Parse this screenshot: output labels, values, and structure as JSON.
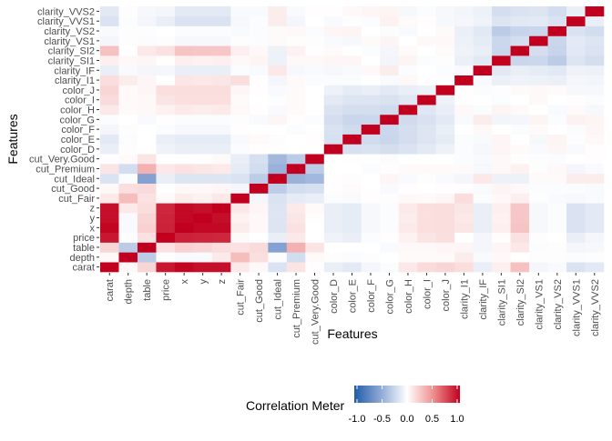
{
  "chart_data": {
    "type": "heatmap",
    "xlabel": "Features",
    "ylabel": "Features",
    "features": [
      "carat",
      "depth",
      "table",
      "price",
      "x",
      "y",
      "z",
      "cut_Fair",
      "cut_Good",
      "cut_Ideal",
      "cut_Premium",
      "cut_Very.Good",
      "color_D",
      "color_E",
      "color_F",
      "color_G",
      "color_H",
      "color_I",
      "color_J",
      "clarity_I1",
      "clarity_IF",
      "clarity_SI1",
      "clarity_SI2",
      "clarity_VS1",
      "clarity_VS2",
      "clarity_VVS1",
      "clarity_VVS2"
    ],
    "legend": {
      "title": "Correlation Meter",
      "placement": "bottom",
      "range": [
        -1,
        1
      ],
      "ticks": [
        "-1.0",
        "-0.5",
        "0.0",
        "0.5",
        "1.0"
      ]
    },
    "colors": {
      "low": "#2166ac",
      "mid": "#ffffff",
      "high": "#c0001e"
    },
    "matrix": [
      [
        1,
        0.03,
        0.18,
        0.92,
        0.98,
        0.95,
        0.95,
        0.09,
        0.03,
        -0.16,
        0.12,
        0.01,
        -0.1,
        -0.12,
        -0.05,
        -0.02,
        0.1,
        0.16,
        0.18,
        0.15,
        -0.1,
        0.07,
        0.27,
        -0.05,
        -0.03,
        -0.16,
        -0.13
      ],
      [
        0.03,
        1,
        -0.3,
        -0.01,
        -0.03,
        -0.03,
        0.09,
        0.29,
        0.14,
        -0.02,
        -0.2,
        0.02,
        -0.01,
        -0.02,
        -0.01,
        0,
        0.02,
        0.02,
        0.02,
        0.08,
        -0.03,
        0.03,
        0,
        -0.01,
        -0.01,
        -0.02,
        -0.01
      ],
      [
        0.18,
        -0.3,
        1,
        0.13,
        0.2,
        0.18,
        0.15,
        0.13,
        0.16,
        -0.55,
        0.34,
        0.12,
        0,
        0,
        0,
        -0.03,
        0.03,
        0.03,
        0.04,
        0.04,
        -0.05,
        0.04,
        0.1,
        -0.02,
        -0.01,
        -0.05,
        -0.04
      ],
      [
        0.92,
        -0.01,
        0.13,
        1,
        0.88,
        0.87,
        0.86,
        0.02,
        0,
        -0.1,
        0.1,
        0,
        -0.07,
        -0.1,
        -0.02,
        0.01,
        0.06,
        0.12,
        0.14,
        0,
        -0.05,
        0.01,
        0.13,
        -0.01,
        0,
        -0.1,
        -0.05
      ],
      [
        0.98,
        -0.03,
        0.2,
        0.88,
        1,
        0.97,
        0.97,
        0.08,
        0.03,
        -0.15,
        0.13,
        0,
        -0.1,
        -0.11,
        -0.04,
        -0.02,
        0.09,
        0.14,
        0.15,
        0.11,
        -0.1,
        0.07,
        0.26,
        -0.04,
        -0.02,
        -0.16,
        -0.12
      ],
      [
        0.95,
        -0.03,
        0.18,
        0.87,
        0.97,
        1,
        0.95,
        0.06,
        0.03,
        -0.15,
        0.11,
        0.01,
        -0.1,
        -0.11,
        -0.04,
        -0.02,
        0.08,
        0.14,
        0.15,
        0.1,
        -0.1,
        0.06,
        0.25,
        -0.04,
        -0.02,
        -0.16,
        -0.12
      ],
      [
        0.95,
        0.09,
        0.15,
        0.86,
        0.97,
        0.95,
        1,
        0.1,
        0.04,
        -0.15,
        0.09,
        0.02,
        -0.1,
        -0.11,
        -0.04,
        -0.02,
        0.09,
        0.14,
        0.15,
        0.11,
        -0.1,
        0.07,
        0.25,
        -0.04,
        -0.02,
        -0.16,
        -0.12
      ],
      [
        0.09,
        0.29,
        0.13,
        0.02,
        0.08,
        0.06,
        0.1,
        1,
        -0.05,
        -0.16,
        -0.11,
        -0.1,
        -0.02,
        -0.03,
        0.01,
        -0.01,
        0.03,
        0.02,
        0.04,
        0.15,
        -0.02,
        0.03,
        0.07,
        -0.01,
        -0.03,
        -0.04,
        -0.03
      ],
      [
        0.03,
        0.14,
        0.16,
        0,
        0.03,
        0.03,
        0.04,
        -0.05,
        1,
        -0.29,
        -0.2,
        -0.18,
        0.01,
        0.02,
        0,
        -0.03,
        0.01,
        0,
        0.01,
        0.01,
        -0.03,
        0.05,
        0.03,
        -0.02,
        -0.02,
        -0.02,
        -0.03
      ],
      [
        -0.16,
        -0.02,
        -0.55,
        -0.1,
        -0.15,
        -0.15,
        -0.15,
        -0.16,
        -0.29,
        1,
        -0.45,
        -0.41,
        0.01,
        -0.01,
        0,
        0.04,
        -0.03,
        -0.01,
        -0.03,
        -0.05,
        0.1,
        -0.08,
        -0.08,
        0.02,
        0.02,
        0.08,
        0.08
      ],
      [
        0.12,
        -0.2,
        0.34,
        0.1,
        0.13,
        0.11,
        0.09,
        -0.11,
        -0.2,
        -0.45,
        1,
        -0.3,
        0,
        0,
        -0.02,
        0.01,
        0.02,
        0.02,
        0.02,
        0.02,
        -0.04,
        0.03,
        0.06,
        -0.01,
        0.03,
        -0.05,
        -0.03
      ],
      [
        0.01,
        0.02,
        0.12,
        0,
        0,
        0.01,
        0.02,
        -0.1,
        -0.18,
        -0.41,
        -0.3,
        1,
        0,
        0.01,
        0,
        -0.02,
        0,
        0,
        0,
        -0.02,
        -0.03,
        0.03,
        0.01,
        -0.01,
        -0.02,
        0,
        0.01
      ],
      [
        -0.1,
        -0.01,
        0,
        -0.07,
        -0.1,
        -0.1,
        -0.1,
        -0.02,
        0.01,
        0.01,
        0,
        0,
        1,
        -0.18,
        -0.17,
        -0.19,
        -0.16,
        -0.12,
        -0.08,
        -0.02,
        -0.04,
        0.04,
        0.02,
        -0.03,
        0.04,
        -0.03,
        0.01
      ],
      [
        -0.12,
        -0.02,
        0,
        -0.1,
        -0.11,
        -0.11,
        -0.11,
        -0.03,
        0.02,
        -0.01,
        0,
        0.01,
        -0.18,
        1,
        -0.21,
        -0.24,
        -0.19,
        -0.15,
        -0.11,
        -0.02,
        -0.03,
        0.04,
        0,
        -0.04,
        0.05,
        -0.01,
        0.03
      ],
      [
        -0.05,
        -0.01,
        0,
        -0.02,
        -0.04,
        -0.04,
        -0.04,
        0.01,
        0,
        0,
        -0.02,
        0,
        -0.17,
        -0.21,
        1,
        -0.23,
        -0.19,
        -0.15,
        -0.1,
        0,
        0.03,
        0,
        -0.02,
        0.02,
        0,
        -0.02,
        0.04
      ],
      [
        -0.02,
        0,
        -0.03,
        0.01,
        -0.02,
        -0.02,
        -0.02,
        -0.01,
        -0.03,
        0.04,
        0.01,
        -0.02,
        -0.19,
        -0.24,
        -0.23,
        1,
        -0.21,
        -0.17,
        -0.12,
        -0.03,
        0.08,
        -0.06,
        -0.05,
        0.05,
        -0.02,
        0.06,
        0.05
      ],
      [
        0.1,
        0.02,
        0.03,
        0.06,
        0.09,
        0.08,
        0.09,
        0.03,
        0.01,
        -0.03,
        0.02,
        0,
        -0.16,
        -0.19,
        -0.19,
        -0.21,
        1,
        -0.14,
        -0.1,
        0.03,
        -0.02,
        0.05,
        0.02,
        0,
        -0.03,
        0.02,
        -0.04
      ],
      [
        0.16,
        0.02,
        0.03,
        0.12,
        0.14,
        0.14,
        0.14,
        0.02,
        0,
        -0.01,
        0.02,
        0,
        -0.12,
        -0.15,
        -0.15,
        -0.17,
        -0.14,
        1,
        -0.08,
        0.01,
        0,
        -0.02,
        0,
        0.03,
        0,
        0.01,
        -0.02
      ],
      [
        0.18,
        0.02,
        0.04,
        0.14,
        0.15,
        0.15,
        0.15,
        0.04,
        0.01,
        -0.03,
        0.02,
        0,
        -0.08,
        -0.11,
        -0.1,
        -0.12,
        -0.1,
        -0.08,
        1,
        0.01,
        -0.02,
        -0.01,
        0.02,
        0.03,
        0.02,
        -0.04,
        -0.04
      ],
      [
        0.15,
        0.08,
        0.04,
        0,
        0.11,
        0.1,
        0.11,
        0.15,
        0.01,
        -0.05,
        0.02,
        -0.02,
        -0.02,
        -0.02,
        0,
        -0.03,
        0.03,
        0.01,
        0.01,
        1,
        -0.03,
        -0.09,
        -0.07,
        -0.08,
        -0.09,
        -0.05,
        -0.06
      ],
      [
        -0.1,
        -0.03,
        -0.05,
        -0.05,
        -0.1,
        -0.1,
        -0.1,
        -0.02,
        -0.03,
        0.1,
        -0.04,
        -0.03,
        -0.04,
        -0.03,
        0.03,
        0.08,
        -0.02,
        0,
        -0.02,
        -0.03,
        1,
        -0.13,
        -0.1,
        -0.11,
        -0.13,
        -0.07,
        -0.08
      ],
      [
        0.07,
        0.03,
        0.04,
        0.01,
        0.07,
        0.06,
        0.07,
        0.03,
        0.05,
        -0.08,
        0.03,
        0.03,
        0.04,
        0.04,
        0,
        -0.06,
        0.05,
        -0.02,
        -0.01,
        -0.09,
        -0.13,
        1,
        -0.24,
        -0.23,
        -0.3,
        -0.15,
        -0.19
      ],
      [
        0.27,
        0,
        0.1,
        0.13,
        0.26,
        0.25,
        0.25,
        0.07,
        0.03,
        -0.08,
        0.06,
        0.01,
        0.02,
        0,
        -0.02,
        -0.05,
        0.02,
        0,
        0.02,
        -0.07,
        -0.1,
        -0.24,
        1,
        -0.19,
        -0.25,
        -0.13,
        -0.16
      ],
      [
        -0.05,
        -0.01,
        -0.02,
        -0.01,
        -0.04,
        -0.04,
        -0.04,
        -0.01,
        -0.02,
        0.02,
        -0.01,
        -0.01,
        -0.03,
        -0.04,
        0.02,
        0.05,
        0,
        0.03,
        0.03,
        -0.08,
        -0.11,
        -0.23,
        -0.19,
        1,
        -0.24,
        -0.12,
        -0.15
      ],
      [
        -0.03,
        -0.01,
        -0.01,
        0,
        -0.02,
        -0.02,
        -0.02,
        -0.03,
        -0.02,
        0.02,
        0.03,
        -0.02,
        0.04,
        0.05,
        0,
        -0.02,
        -0.03,
        0,
        0.02,
        -0.09,
        -0.13,
        -0.3,
        -0.25,
        -0.24,
        1,
        -0.16,
        -0.2
      ],
      [
        -0.16,
        -0.02,
        -0.05,
        -0.1,
        -0.16,
        -0.16,
        -0.16,
        -0.04,
        -0.02,
        0.08,
        -0.05,
        0,
        -0.03,
        -0.01,
        -0.02,
        0.06,
        0.02,
        0.01,
        -0.04,
        -0.05,
        -0.07,
        -0.15,
        -0.13,
        -0.12,
        -0.16,
        1,
        -0.1
      ],
      [
        -0.13,
        -0.01,
        -0.04,
        -0.05,
        -0.12,
        -0.12,
        -0.12,
        -0.03,
        -0.03,
        0.08,
        -0.03,
        0.01,
        0.01,
        0.03,
        0.04,
        0.05,
        -0.04,
        -0.02,
        -0.04,
        -0.06,
        -0.08,
        -0.19,
        -0.16,
        -0.15,
        -0.2,
        -0.1,
        1
      ]
    ]
  }
}
